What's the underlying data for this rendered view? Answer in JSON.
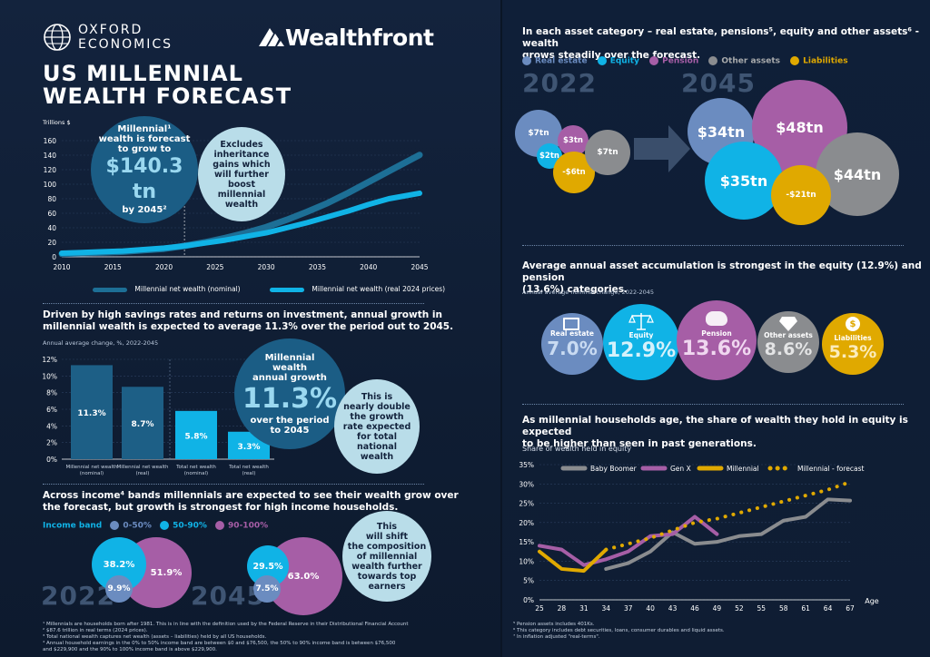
{
  "brand": {
    "oxford_line1": "OXFORD",
    "oxford_line2": "ECONOMICS",
    "wealthfront": "Wealthfront"
  },
  "title": {
    "line1": "US MILLENNIAL",
    "line2": "WEALTH FORECAST"
  },
  "chart1": {
    "units": "Trillions $",
    "callout_main_l1": "Millennial¹",
    "callout_main_l2": "wealth is forecast",
    "callout_main_l3": "to grow to",
    "callout_main_value": "$140.3 tn",
    "callout_main_by": "by 2045²",
    "callout_note_l1": "Excludes",
    "callout_note_l2": "inheritance",
    "callout_note_l3": "gains which",
    "callout_note_l4": "will further",
    "callout_note_l5": "boost",
    "callout_note_l6": "millennial",
    "callout_note_l7": "wealth",
    "legend_nominal": "Millennial net wealth (nominal)",
    "legend_real": "Millennial net wealth (real 2024 prices)"
  },
  "section2": {
    "heading_l1": "Driven by high savings rates and returns on investment, annual growth in",
    "heading_l2": "millennial wealth is expected to average 11.3% over the period out to 2045.",
    "subtitle": "Annual average change, %, 2022-2045",
    "big_l1": "Millennial",
    "big_l2": "wealth",
    "big_l3": "annual growth",
    "big_value": "11.3%",
    "big_l4": "over the period",
    "big_l5": "to 2045",
    "note_l1": "This is",
    "note_l2": "nearly double",
    "note_l3": "the growth",
    "note_l4": "rate expected",
    "note_l5": "for total",
    "note_l6": "national",
    "note_l7": "wealth"
  },
  "section3": {
    "heading_l1": "Across income⁴ bands millennials are expected to see their wealth grow over",
    "heading_l2": "the forecast, but growth is strongest for high income households.",
    "legend_title": "Income band",
    "legend_1": "0-50%",
    "legend_2": "50-90%",
    "legend_3": "90-100%",
    "year1": "2022",
    "year2": "2045",
    "v2022_mid": "38.2%",
    "v2022_low": "9.9%",
    "v2022_high": "51.9%",
    "v2045_mid": "29.5%",
    "v2045_low": "7.5%",
    "v2045_high": "63.0%",
    "note_l1": "This",
    "note_l2": "will shift",
    "note_l3": "the composition",
    "note_l4": "of millennial",
    "note_l5": "wealth further",
    "note_l6": "towards top",
    "note_l7": "earners"
  },
  "footnotes_left": {
    "f1": "¹ Millennials are households born after 1981. This is in line with the definition used by the Federal Reserve in their Distributional Financial Account",
    "f2": "² $87.6 trillion in real terms (2024 prices).",
    "f3": "³ Total national wealth captures net wealth (assets – liabilities) held by all US households.",
    "f4": "⁴ Annual household earnings in the 0% to 50% income band are between $0 and $76,500, the 50% to 90% income band is between $76,500",
    "f5": "and $229,900 and the 90% to 100% income band is above $229,900."
  },
  "section4": {
    "heading_l1": "In each asset category – real estate, pensions⁵, equity and other assets⁶ - wealth",
    "heading_l2": "grows steadily over the forecast.",
    "legend": [
      "Real estate",
      "Equity",
      "Pension",
      "Other assets",
      "Liabilities"
    ],
    "year1": "2022",
    "year2": "2045",
    "v2022": {
      "real_estate": "$7tn",
      "pension": "$3tn",
      "equity": "$2tn",
      "other": "$7tn",
      "liabilities": "-$6tn"
    },
    "v2045": {
      "real_estate": "$34tn",
      "pension": "$48tn",
      "equity": "$35tn",
      "other": "$44tn",
      "liabilities": "-$21tn"
    }
  },
  "section5": {
    "heading_l1": "Average annual asset accumulation is strongest in the equity (12.9%) and pension",
    "heading_l2": "(13.6%) categories.",
    "subtitle": "Annual average nominal change, 2022-2045",
    "items": [
      {
        "label": "Real estate",
        "value": "7.0%"
      },
      {
        "label": "Equity",
        "value": "12.9%"
      },
      {
        "label": "Pension",
        "value": "13.6%"
      },
      {
        "label": "Other assets",
        "value": "8.6%"
      },
      {
        "label": "Liabilities",
        "value": "5.3%"
      }
    ]
  },
  "section6": {
    "heading_l1": "As millennial households age, the share of wealth they hold in equity is expected",
    "heading_l2": "to be higher than seen in past generations.",
    "subtitle": "Share of wealth held in equity",
    "xaxis_label": "Age"
  },
  "footnotes_right": {
    "f5": "⁵ Pension assets includes 401Ks.",
    "f6": "⁶ This category includes debt securities, loans, consumer durables and liquid assets.",
    "f7": "⁷ In inflation adjusted \"real-terms\"."
  },
  "chart_data": [
    {
      "type": "area",
      "ylabel": "Trillions $",
      "ylim": [
        0,
        160
      ],
      "x_ticks": [
        "2010",
        "2015",
        "2020",
        "2025",
        "2030",
        "2035",
        "2040",
        "2045"
      ],
      "y_ticks": [
        "0",
        "20",
        "40",
        "60",
        "80",
        "100",
        "120",
        "140",
        "160"
      ],
      "x": [
        2010,
        2012,
        2014,
        2016,
        2018,
        2020,
        2022,
        2024,
        2026,
        2028,
        2030,
        2032,
        2034,
        2036,
        2038,
        2040,
        2042,
        2045
      ],
      "series": [
        {
          "name": "Millennial net wealth (nominal)",
          "color": "#1d6f96",
          "values": [
            4,
            5,
            6,
            7,
            9,
            11,
            15,
            20,
            26,
            33,
            41,
            51,
            62,
            74,
            88,
            103,
            118,
            140.3
          ]
        },
        {
          "name": "Millennial net wealth (real 2024 prices)",
          "color": "#10b3e6",
          "values": [
            5,
            6,
            7,
            8,
            10,
            12,
            15,
            19,
            23,
            28,
            33,
            40,
            47,
            55,
            63,
            72,
            80,
            87.6
          ]
        }
      ]
    },
    {
      "type": "bar",
      "ylim": [
        0,
        12
      ],
      "y_ticks": [
        "0%",
        "2%",
        "4%",
        "6%",
        "8%",
        "10%",
        "12%"
      ],
      "categories": [
        "Millennial net wealth (nominal)",
        "Millennial net wealth (real)",
        "Total net wealth (nominal)",
        "Total net wealth (real)"
      ],
      "values": [
        11.3,
        8.7,
        5.8,
        3.3
      ],
      "labels": [
        "11.3%",
        "8.7%",
        "5.8%",
        "3.3%"
      ],
      "colors": [
        "#1d5f86",
        "#1d5f86",
        "#10b3e6",
        "#10b3e6"
      ]
    },
    {
      "type": "line",
      "ylim": [
        0,
        35
      ],
      "y_ticks": [
        "0%",
        "5%",
        "10%",
        "15%",
        "20%",
        "25%",
        "30%",
        "35%"
      ],
      "x_ticks": [
        "25",
        "28",
        "31",
        "34",
        "37",
        "40",
        "43",
        "46",
        "49",
        "52",
        "55",
        "58",
        "61",
        "64",
        "67"
      ],
      "series": [
        {
          "name": "Baby Boomer",
          "color": "#8a8c8f",
          "style": "solid",
          "x": [
            34,
            37,
            40,
            43,
            46,
            49,
            52,
            55,
            58,
            61,
            64,
            67
          ],
          "values": [
            8,
            9.5,
            12.5,
            17.5,
            14.5,
            15,
            16.5,
            17,
            20.5,
            21.5,
            26,
            25.7
          ]
        },
        {
          "name": "Gen X",
          "color": "#a65ea6",
          "style": "solid",
          "x": [
            25,
            28,
            31,
            34,
            37,
            40,
            43,
            46,
            49
          ],
          "values": [
            14,
            13,
            9,
            10.5,
            12.5,
            16.5,
            17,
            21.5,
            17
          ]
        },
        {
          "name": "Millennial",
          "color": "#e0a900",
          "style": "solid",
          "x": [
            25,
            28,
            31,
            34
          ],
          "values": [
            12.5,
            8,
            7.5,
            13
          ]
        },
        {
          "name": "Millennial - forecast",
          "color": "#e0a900",
          "style": "dotted",
          "x": [
            34,
            37,
            40,
            43,
            46,
            49,
            52,
            55,
            58,
            61,
            64,
            67
          ],
          "values": [
            13,
            14.5,
            16,
            18,
            20,
            21,
            22.5,
            24,
            25.5,
            27,
            28.5,
            30.5
          ]
        }
      ]
    }
  ]
}
